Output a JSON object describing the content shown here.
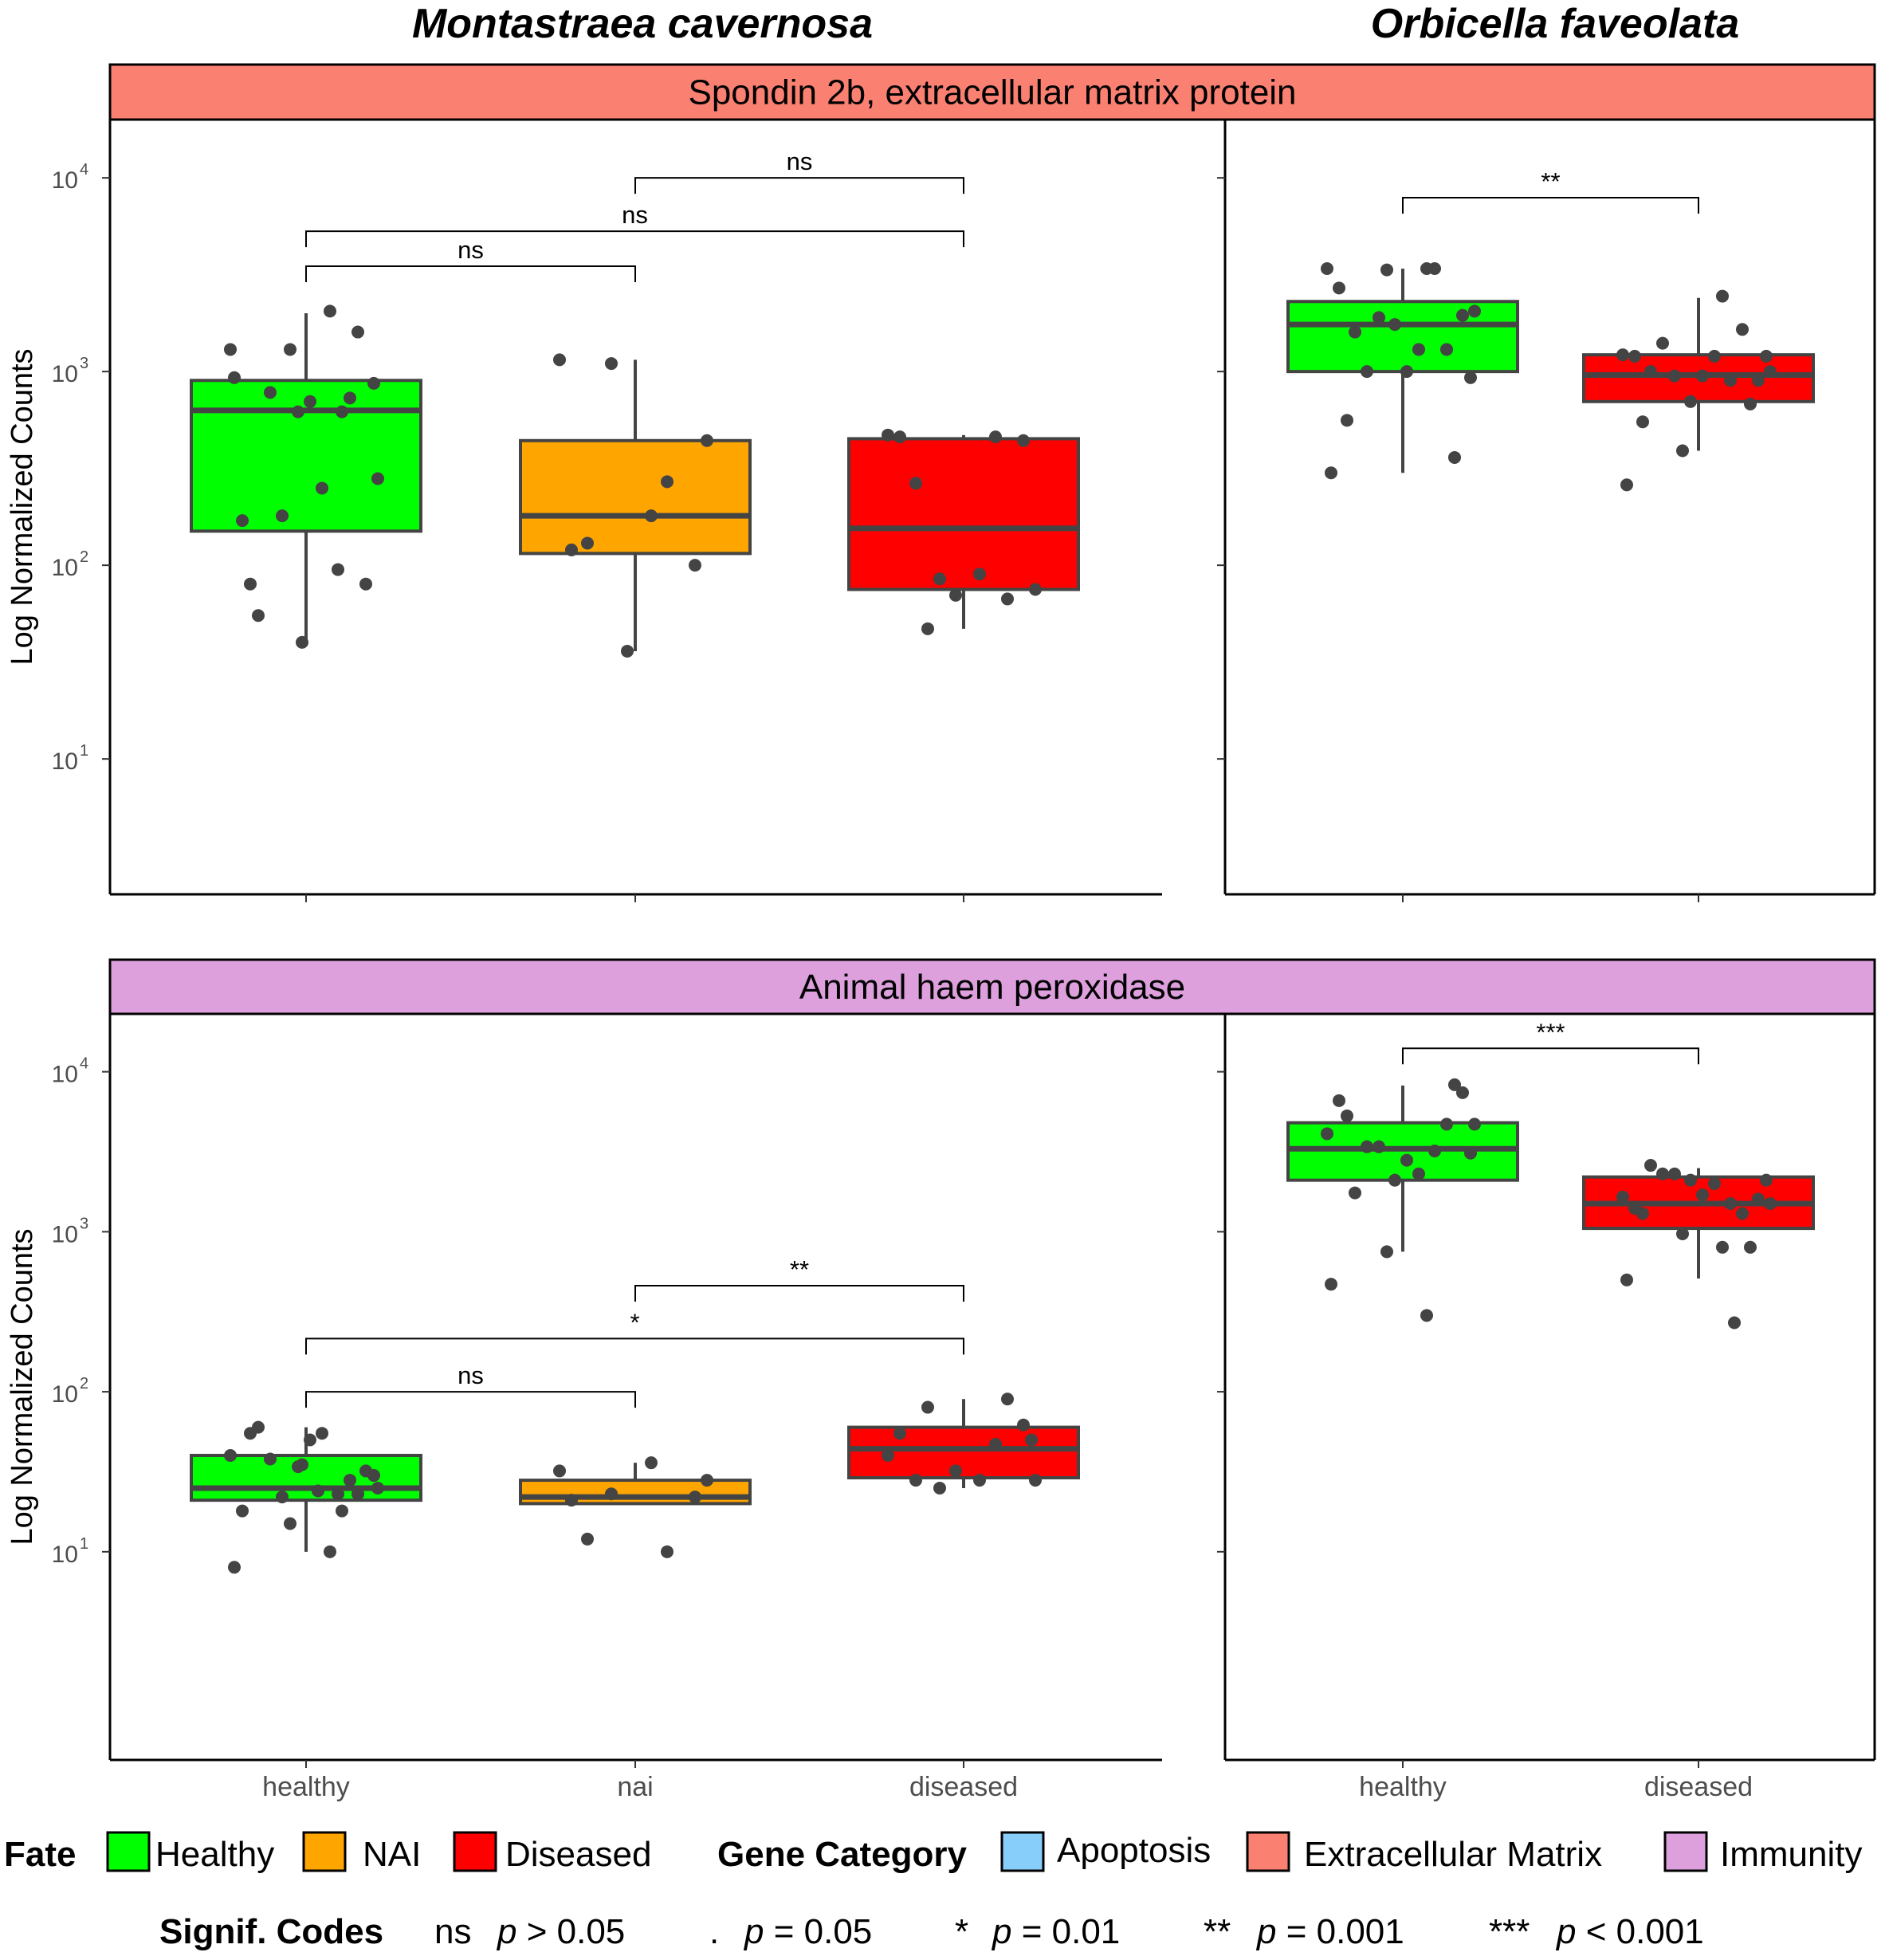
{
  "chart_data": {
    "type": "box",
    "columns": [
      "Montastraea cavernosa",
      "Orbicella faveolata"
    ],
    "ylabel": "Log Normalized Counts",
    "y_scale": "log10",
    "y_ticks": [
      {
        "value": 10,
        "base": "10",
        "exp": "1"
      },
      {
        "value": 100,
        "base": "10",
        "exp": "2"
      },
      {
        "value": 1000,
        "base": "10",
        "exp": "3"
      },
      {
        "value": 10000,
        "base": "10",
        "exp": "4"
      }
    ],
    "panels": [
      {
        "gene": "Spondin 2b, extracellular matrix protein",
        "gene_category": "Extracellular Matrix",
        "strip_color": "#FA8072",
        "ylim": [
          2,
          20000
        ],
        "facets": [
          {
            "species": "Montastraea cavernosa",
            "categories": [
              "healthy",
              "nai",
              "diseased"
            ],
            "boxes": [
              {
                "category": "healthy",
                "fate": "Healthy",
                "color": "#00FF00",
                "min": 40,
                "q1": 150,
                "median": 630,
                "q3": 900,
                "max": 2000,
                "points": [
                  1300,
                  95,
                  170,
                  80,
                  55,
                  250,
                  180,
                  280,
                  620,
                  730,
                  780,
                  870,
                  700,
                  80,
                  1600,
                  1300,
                  2050,
                  930,
                  620,
                  40
                ]
              },
              {
                "category": "nai",
                "fate": "NAI",
                "color": "#FFA500",
                "min": 36,
                "q1": 115,
                "median": 180,
                "q3": 440,
                "max": 1150,
                "points": [
                  1150,
                  270,
                  120,
                  100,
                  130,
                  180,
                  1100,
                  440,
                  36
                ]
              },
              {
                "category": "diseased",
                "fate": "Diseased",
                "color": "#FF0000",
                "min": 47,
                "q1": 75,
                "median": 155,
                "q3": 450,
                "max": 470,
                "points": [
                  470,
                  460,
                  460,
                  440,
                  265,
                  90,
                  85,
                  75,
                  70,
                  67,
                  47
                ]
              }
            ],
            "comparisons": [
              {
                "from": "healthy",
                "to": "nai",
                "y": 3500,
                "label": "ns"
              },
              {
                "from": "healthy",
                "to": "diseased",
                "y": 5300,
                "label": "ns"
              },
              {
                "from": "nai",
                "to": "diseased",
                "y": 10000,
                "label": "ns"
              }
            ]
          },
          {
            "species": "Orbicella faveolata",
            "categories": [
              "healthy",
              "diseased"
            ],
            "boxes": [
              {
                "category": "healthy",
                "fate": "Healthy",
                "color": "#00FF00",
                "min": 300,
                "q1": 1000,
                "median": 1750,
                "q3": 2300,
                "max": 3400,
                "points": [
                  3400,
                  3400,
                  2700,
                  1950,
                  1600,
                  1300,
                  1900,
                  2050,
                  1750,
                  1300,
                  1000,
                  930,
                  1000,
                  560,
                  360,
                  3350,
                  3400,
                  300
                ]
              },
              {
                "category": "diseased",
                "fate": "Diseased",
                "color": "#FF0000",
                "min": 390,
                "q1": 700,
                "median": 960,
                "q3": 1220,
                "max": 2400,
                "points": [
                  1220,
                  900,
                  1200,
                  900,
                  1000,
                  1200,
                  950,
                  1000,
                  700,
                  1650,
                  1400,
                  1200,
                  950,
                  550,
                  680,
                  390,
                  2450,
                  260
                ]
              }
            ],
            "comparisons": [
              {
                "from": "healthy",
                "to": "diseased",
                "y": 7900,
                "label": "**"
              }
            ]
          }
        ]
      },
      {
        "gene": "Animal haem peroxidase",
        "gene_category": "Immunity",
        "strip_color": "#DDA0DD",
        "ylim": [
          0.5,
          23000
        ],
        "facets": [
          {
            "species": "Montastraea cavernosa",
            "categories": [
              "healthy",
              "nai",
              "diseased"
            ],
            "boxes": [
              {
                "category": "healthy",
                "fate": "Healthy",
                "color": "#00FF00",
                "min": 10,
                "q1": 21,
                "median": 25,
                "q3": 40,
                "max": 60,
                "points": [
                  40,
                  23,
                  18,
                  32,
                  60,
                  55,
                  22,
                  25,
                  34,
                  28,
                  38,
                  30,
                  50,
                  55,
                  23,
                  15,
                  10,
                  8,
                  18,
                  35,
                  24
                ]
              },
              {
                "category": "nai",
                "fate": "NAI",
                "color": "#FFA500",
                "min": 20,
                "q1": 20,
                "median": 22,
                "q3": 28,
                "max": 36,
                "points": [
                  32,
                  10,
                  21,
                  22,
                  12,
                  36,
                  23,
                  28
                ]
              },
              {
                "category": "diseased",
                "fate": "Diseased",
                "color": "#FF0000",
                "min": 25,
                "q1": 29,
                "median": 44,
                "q3": 60,
                "max": 90,
                "points": [
                  40,
                  47,
                  55,
                  62,
                  28,
                  28,
                  25,
                  28,
                  32,
                  90,
                  80,
                  50
                ]
              }
            ],
            "comparisons": [
              {
                "from": "healthy",
                "to": "nai",
                "y": 100,
                "label": "ns"
              },
              {
                "from": "healthy",
                "to": "diseased",
                "y": 215,
                "label": "*"
              },
              {
                "from": "nai",
                "to": "diseased",
                "y": 460,
                "label": "**"
              }
            ]
          },
          {
            "species": "Orbicella faveolata",
            "categories": [
              "healthy",
              "diseased"
            ],
            "boxes": [
              {
                "category": "healthy",
                "fate": "Healthy",
                "color": "#00FF00",
                "min": 750,
                "q1": 2100,
                "median": 3300,
                "q3": 4800,
                "max": 8200,
                "points": [
                  4100,
                  3200,
                  6600,
                  7400,
                  1750,
                  2300,
                  3400,
                  4700,
                  2100,
                  4700,
                  3400,
                  3100,
                  2800,
                  5300,
                  8300,
                  750,
                  300,
                  470
                ]
              },
              {
                "category": "diseased",
                "fate": "Diseased",
                "color": "#FF0000",
                "min": 510,
                "q1": 1050,
                "median": 1500,
                "q3": 2200,
                "max": 2500,
                "points": [
                  1650,
                  1500,
                  1400,
                  1600,
                  2600,
                  2000,
                  2300,
                  1500,
                  2100,
                  1300,
                  2300,
                  2100,
                  1700,
                  1300,
                  800,
                  970,
                  800,
                  500,
                  270
                ]
              }
            ],
            "comparisons": [
              {
                "from": "healthy",
                "to": "diseased",
                "y": 14000,
                "label": "***"
              }
            ]
          }
        ]
      }
    ],
    "legend": {
      "fate_title": "Fate",
      "fate": [
        {
          "label": "Healthy",
          "color": "#00FF00"
        },
        {
          "label": "NAI",
          "color": "#FFA500"
        },
        {
          "label": "Diseased",
          "color": "#FF0000"
        }
      ],
      "category_title": "Gene Category",
      "categories": [
        {
          "label": "Apoptosis",
          "color": "#87CEFA"
        },
        {
          "label": "Extracellular Matrix",
          "color": "#FA8072"
        },
        {
          "label": "Immunity",
          "color": "#DDA0DD"
        }
      ]
    },
    "signif_codes": {
      "title": "Signif. Codes",
      "codes": [
        {
          "symbol": "ns",
          "p": "p",
          "rel": " > 0.05"
        },
        {
          "symbol": ".",
          "p": "p",
          "rel": " = 0.05"
        },
        {
          "symbol": "*",
          "p": "p",
          "rel": " = 0.01"
        },
        {
          "symbol": "**",
          "p": "p",
          "rel": " = 0.001"
        },
        {
          "symbol": "***",
          "p": "p",
          "rel": " < 0.001"
        }
      ]
    }
  }
}
